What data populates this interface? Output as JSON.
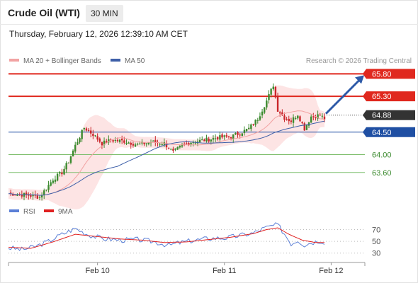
{
  "header": {
    "instrument": "Crude Oil (WTI)",
    "timeframe": "30 MIN",
    "datetime": "Thursday, February 12, 2026 12:39:10 AM CET"
  },
  "legend": {
    "ma20_label": "MA 20 + Bollinger Bands",
    "ma50_label": "MA 50",
    "rsi_label": "RSI",
    "ma9_label": "9MA"
  },
  "credit": "Research © 2026 Trading Central",
  "colors": {
    "resistance": "#e0281e",
    "pivot": "#1f4fa3",
    "support": "#3b8a2e",
    "current": "#333333",
    "bollinger_fill": "#fde4e4",
    "ma20": "#f2a3a3",
    "ma50": "#3d5fa8",
    "bull_candle": "#3b8a2e",
    "bear_candle": "#c9262b",
    "rsi": "#5b7fd6",
    "rsi_ma": "#e02020",
    "arrow": "#2e5aa8"
  },
  "chart_data": [
    {
      "type": "candlestick",
      "title": "Crude Oil (WTI)",
      "timeframe": "30 MIN",
      "x_ticks": [
        "Feb 10",
        "Feb 11",
        "Feb 12"
      ],
      "ylim": [
        62.95,
        65.98
      ],
      "bars": 150,
      "indicators": [
        "MA 20 + Bollinger Bands",
        "MA 50"
      ],
      "price_path": [
        [
          0,
          63.13
        ],
        [
          8,
          63.1
        ],
        [
          14,
          63.05
        ],
        [
          17,
          63.25
        ],
        [
          20,
          63.45
        ],
        [
          24,
          63.6
        ],
        [
          27,
          63.85
        ],
        [
          30,
          64.2
        ],
        [
          34,
          64.6
        ],
        [
          38,
          64.45
        ],
        [
          42,
          64.25
        ],
        [
          46,
          64.32
        ],
        [
          52,
          64.3
        ],
        [
          58,
          64.22
        ],
        [
          64,
          64.28
        ],
        [
          70,
          64.25
        ],
        [
          74,
          64.05
        ],
        [
          78,
          64.2
        ],
        [
          82,
          64.28
        ],
        [
          88,
          64.32
        ],
        [
          94,
          64.38
        ],
        [
          100,
          64.4
        ],
        [
          104,
          64.48
        ],
        [
          108,
          64.58
        ],
        [
          112,
          64.8
        ],
        [
          116,
          65.2
        ],
        [
          119,
          65.55
        ],
        [
          121,
          65.0
        ],
        [
          124,
          64.82
        ],
        [
          127,
          64.75
        ],
        [
          130,
          64.9
        ],
        [
          133,
          64.58
        ],
        [
          136,
          64.85
        ],
        [
          140,
          64.88
        ],
        [
          142,
          64.8
        ]
      ],
      "levels": [
        {
          "value": 65.8,
          "label": "65.80",
          "kind": "resistance"
        },
        {
          "value": 65.3,
          "label": "65.30",
          "kind": "resistance"
        },
        {
          "value": 64.88,
          "label": "64.88",
          "kind": "current"
        },
        {
          "value": 64.5,
          "label": "64.50",
          "kind": "pivot"
        },
        {
          "value": 64.0,
          "label": "64.00",
          "kind": "support"
        },
        {
          "value": 63.6,
          "label": "63.60",
          "kind": "support"
        }
      ],
      "target_arrow": {
        "from_value": 64.88,
        "to_value": 65.8,
        "direction": "up"
      }
    },
    {
      "type": "line",
      "title": "RSI",
      "series": [
        {
          "name": "RSI",
          "path": [
            [
              0,
              39
            ],
            [
              6,
              36
            ],
            [
              12,
              41
            ],
            [
              18,
              50
            ],
            [
              24,
              62
            ],
            [
              30,
              72
            ],
            [
              36,
              61
            ],
            [
              42,
              55
            ],
            [
              50,
              52
            ],
            [
              58,
              53
            ],
            [
              66,
              49
            ],
            [
              72,
              43
            ],
            [
              76,
              47
            ],
            [
              82,
              51
            ],
            [
              90,
              55
            ],
            [
              98,
              56
            ],
            [
              104,
              60
            ],
            [
              110,
              64
            ],
            [
              114,
              71
            ],
            [
              118,
              76
            ],
            [
              121,
              78
            ],
            [
              124,
              63
            ],
            [
              127,
              46
            ],
            [
              130,
              52
            ],
            [
              133,
              44
            ],
            [
              136,
              48
            ],
            [
              140,
              51
            ],
            [
              142,
              49
            ]
          ]
        },
        {
          "name": "9MA",
          "path": [
            [
              0,
              40
            ],
            [
              10,
              38
            ],
            [
              20,
              49
            ],
            [
              30,
              62
            ],
            [
              40,
              58
            ],
            [
              50,
              54
            ],
            [
              60,
              52
            ],
            [
              70,
              48
            ],
            [
              80,
              49
            ],
            [
              90,
              53
            ],
            [
              100,
              57
            ],
            [
              110,
              63
            ],
            [
              116,
              70
            ],
            [
              121,
              73
            ],
            [
              126,
              62
            ],
            [
              132,
              52
            ],
            [
              138,
              48
            ],
            [
              142,
              48
            ]
          ]
        }
      ],
      "y_ticks": [
        30,
        50,
        70
      ],
      "ylim": [
        20,
        85
      ]
    }
  ]
}
